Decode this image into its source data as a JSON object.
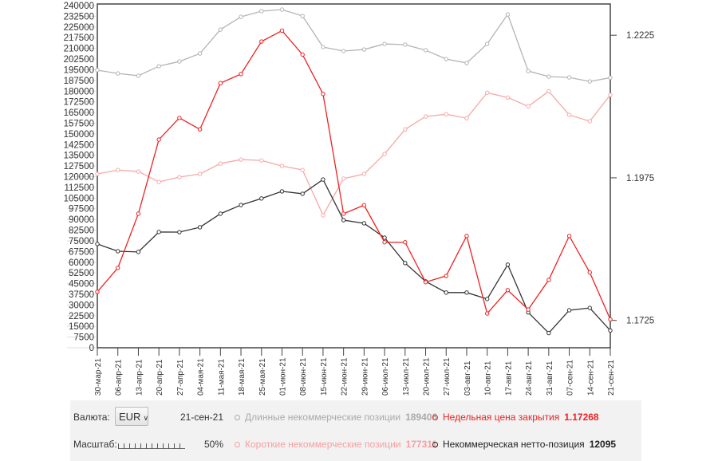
{
  "chart_data": {
    "type": "line",
    "x": [
      "30-мар-21",
      "06-апр-21",
      "13-апр-21",
      "20-апр-21",
      "27-апр-21",
      "04-мая-21",
      "11-мая-21",
      "18-мая-21",
      "25-мая-21",
      "01-июн-21",
      "08-июн-21",
      "15-июн-21",
      "22-июн-21",
      "29-июн-21",
      "06-июл-21",
      "13-июл-21",
      "20-июл-21",
      "27-июл-21",
      "03-авг-21",
      "10-авг-21",
      "17-авг-21",
      "24-авг-21",
      "31-авг-21",
      "07-сен-21",
      "14-сен-21",
      "21-сен-21"
    ],
    "left_axis": {
      "ylim": [
        0,
        240000
      ],
      "step": 7500
    },
    "right_axis": {
      "ylim": [
        1.1677,
        1.2277
      ],
      "ticks": [
        "1.2225",
        "1.1975",
        "1.1725"
      ]
    },
    "series": [
      {
        "name": "Длинные некоммерческие позиции",
        "axis": "left",
        "color": "#b4b4b4",
        "values": [
          194700,
          192400,
          190800,
          197500,
          200800,
          206400,
          223200,
          232100,
          236100,
          237200,
          232700,
          210900,
          208100,
          209200,
          213100,
          212600,
          208700,
          202500,
          199700,
          213100,
          233800,
          194100,
          190200,
          189600,
          186800,
          189406
        ]
      },
      {
        "name": "Короткие некоммерческие позиции",
        "axis": "left",
        "color": "#f7a8a8",
        "values": [
          121900,
          124700,
          123600,
          116300,
          119700,
          121900,
          129200,
          132000,
          131400,
          127500,
          124700,
          92900,
          118600,
          121900,
          135900,
          153200,
          162200,
          163800,
          161000,
          178900,
          175500,
          169300,
          179900,
          163300,
          158900,
          177311
        ]
      },
      {
        "name": "Некоммерческая нетто-позиция",
        "axis": "left",
        "color": "#333333",
        "values": [
          72800,
          67700,
          67200,
          81200,
          81100,
          84500,
          94000,
          100100,
          104700,
          109700,
          108000,
          118000,
          89500,
          87300,
          77200,
          59400,
          46500,
          38700,
          38700,
          34200,
          58300,
          24800,
          10300,
          26300,
          27900,
          12095
        ]
      },
      {
        "name": "Недельная цена закрытия",
        "axis": "right",
        "color": "#ee2222",
        "values": [
          1.1775,
          1.1817,
          1.1912,
          1.2042,
          1.208,
          1.206,
          1.2141,
          1.2157,
          1.2214,
          1.2233,
          1.2191,
          1.2122,
          1.1912,
          1.1927,
          1.1862,
          1.1862,
          1.1792,
          1.1803,
          1.1873,
          1.1737,
          1.1778,
          1.1744,
          1.1796,
          1.1873,
          1.1809,
          1.17268
        ]
      }
    ]
  },
  "controls": {
    "currency_label": "Валюта:",
    "currency_value": "EUR",
    "date": "21-сен-21",
    "scale_label": "Масштаб:",
    "scale_value": "50%",
    "legend": [
      {
        "label": "Длинные некоммерческие позиции",
        "value": "189406"
      },
      {
        "label": "Недельная цена закрытия",
        "value": "1.17268"
      },
      {
        "label": "Короткие некоммерческие позиции",
        "value": "177311"
      },
      {
        "label": "Некоммерческая нетто-позиция",
        "value": "12095"
      }
    ]
  }
}
